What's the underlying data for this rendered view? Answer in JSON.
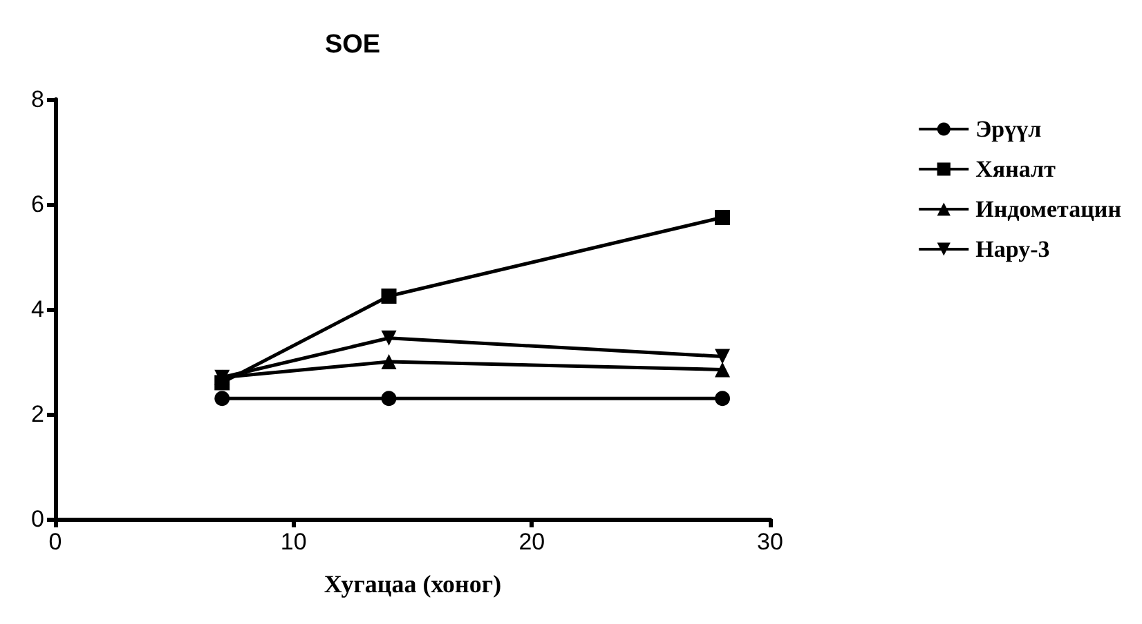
{
  "chart_data": {
    "type": "line",
    "title": "SOE",
    "xlabel": "Хугацаа (хоног)",
    "x": [
      7,
      14,
      28
    ],
    "xlim": [
      0,
      30
    ],
    "xticks": [
      0,
      10,
      20,
      30
    ],
    "ylim": [
      0,
      8
    ],
    "yticks": [
      0,
      2,
      4,
      6,
      8
    ],
    "grid": false,
    "legend": "right",
    "series": [
      {
        "name": "Эрүүл",
        "color": "#000000",
        "marker": "circle",
        "values": [
          2.3,
          2.3,
          2.3
        ]
      },
      {
        "name": "Хяналт",
        "color": "#000000",
        "marker": "square",
        "values": [
          2.6,
          4.25,
          5.75
        ]
      },
      {
        "name": "Индометацин",
        "color": "#000000",
        "marker": "triangle",
        "values": [
          2.7,
          3.0,
          2.85
        ]
      },
      {
        "name": "Нару-3",
        "color": "#000000",
        "marker": "triangle-down",
        "values": [
          2.7,
          3.45,
          3.1
        ]
      }
    ]
  }
}
